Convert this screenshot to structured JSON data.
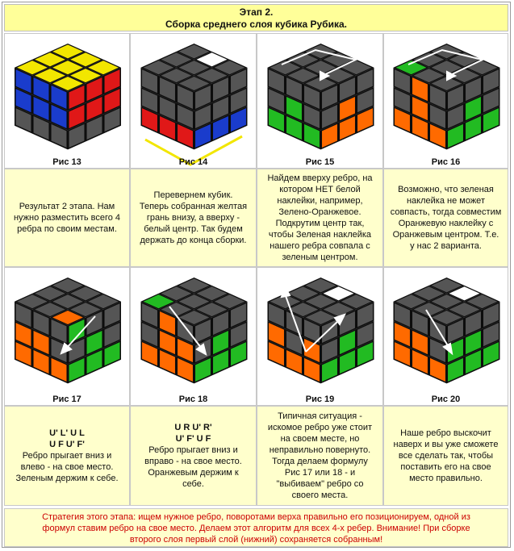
{
  "header": {
    "stage": "Этап 2.",
    "subtitle": "Сборка среднего слоя кубика Рубика."
  },
  "row1": {
    "captions": [
      "Рис 13",
      "Рис 14",
      "Рис 15",
      "Рис 16"
    ],
    "texts": [
      [
        "Результат 2 этапа. Нам",
        "нужно разместить всего 4",
        "ребра по своим местам."
      ],
      [
        "Перевернем кубик.",
        "Теперь собранная желтая",
        "грань внизу, а вверху -",
        "белый центр. Так будем",
        "держать до конца сборки."
      ],
      [
        "Найдем вверху ребро, на",
        "котором НЕТ белой",
        "наклейки, например,",
        "Зелено-Оранжевое.",
        "Подкрутим центр так,",
        "чтобы Зеленая наклейка",
        "нашего ребра совпала с",
        "зеленым центром."
      ],
      [
        "Возможно, что зеленая",
        "наклейка не может",
        "совпасть, тогда совместим",
        "Оранжевую наклейку с",
        "Оранжевым центром. Т.е.",
        "у нас 2 варианта."
      ]
    ]
  },
  "row2": {
    "captions": [
      "Рис 17",
      "Рис 18",
      "Рис 19",
      "Рис 20"
    ],
    "formula_left": [
      "U' L' U L",
      "U F U' F'"
    ],
    "formula_right": [
      "U R U' R'",
      "U' F' U F"
    ],
    "text_left": [
      "Ребро прыгает вниз и",
      "влево - на свое место.",
      "Зеленым держим к себе."
    ],
    "text_right": [
      "Ребро прыгает вниз и",
      "вправо - на свое место.",
      "Оранжевым держим к",
      "себе."
    ],
    "text_3": [
      "Типичная ситуация -",
      "искомое ребро уже стоит",
      "на своем месте, но",
      "неправильно повернуто.",
      "Тогда делаем формулу",
      "Рис 17 или 18 - и",
      "\"выбиваем\" ребро со",
      "своего места."
    ],
    "text_4": [
      "Наше ребро выскочит",
      "наверх и вы уже сможете",
      "все сделать так, чтобы",
      "поставить его на свое",
      "место правильно."
    ]
  },
  "footer": {
    "lines": [
      "Стратегия этого этапа: ищем нужное ребро, поворотами верха правильно его позиционируем, одной из",
      "формул ставим ребро на свое место. Делаем этот алгоритм для всех 4-х ребер. Внимание! При сборке",
      "второго слоя первый слой (нижний) сохраняется собранным!"
    ]
  },
  "colors": {
    "yellow": "#f2e600",
    "red": "#e01818",
    "blue": "#1a3ccc",
    "green": "#22bb22",
    "orange": "#ff6a00",
    "white": "#ffffff",
    "gray": "#555555",
    "black": "#111111"
  },
  "cubes": [
    {
      "top": [
        "yellow",
        "yellow",
        "yellow",
        "yellow",
        "yellow",
        "yellow",
        "yellow",
        "yellow",
        "yellow"
      ],
      "left": [
        "blue",
        "blue",
        "blue",
        "blue",
        "blue",
        "blue",
        "gray",
        "gray",
        "gray"
      ],
      "right": [
        "red",
        "red",
        "red",
        "red",
        "red",
        "red",
        "gray",
        "gray",
        "gray"
      ]
    },
    {
      "top": [
        "gray",
        "white",
        "gray",
        "gray",
        "gray",
        "gray",
        "gray",
        "gray",
        "gray"
      ],
      "left": [
        "gray",
        "gray",
        "gray",
        "gray",
        "gray",
        "gray",
        "red",
        "red",
        "red"
      ],
      "right": [
        "gray",
        "gray",
        "gray",
        "gray",
        "gray",
        "gray",
        "blue",
        "blue",
        "blue"
      ]
    },
    {
      "top": [
        "gray",
        "gray",
        "gray",
        "gray",
        "gray",
        "gray",
        "gray",
        "gray",
        "gray"
      ],
      "left": [
        "gray",
        "gray",
        "gray",
        "gray",
        "green",
        "gray",
        "green",
        "green",
        "green"
      ],
      "right": [
        "gray",
        "gray",
        "gray",
        "gray",
        "orange",
        "gray",
        "orange",
        "orange",
        "orange"
      ]
    },
    {
      "top": [
        "gray",
        "gray",
        "gray",
        "gray",
        "gray",
        "gray",
        "green",
        "gray",
        "gray"
      ],
      "left": [
        "gray",
        "orange",
        "gray",
        "gray",
        "orange",
        "gray",
        "orange",
        "orange",
        "orange"
      ],
      "right": [
        "gray",
        "gray",
        "gray",
        "gray",
        "green",
        "gray",
        "green",
        "green",
        "green"
      ]
    },
    {
      "top": [
        "gray",
        "gray",
        "gray",
        "gray",
        "gray",
        "gray",
        "gray",
        "gray",
        "orange"
      ],
      "left": [
        "gray",
        "gray",
        "gray",
        "orange",
        "orange",
        "gray",
        "orange",
        "orange",
        "orange"
      ],
      "right": [
        "green",
        "gray",
        "gray",
        "gray",
        "green",
        "gray",
        "green",
        "green",
        "green"
      ]
    },
    {
      "top": [
        "gray",
        "gray",
        "gray",
        "gray",
        "gray",
        "gray",
        "green",
        "gray",
        "gray"
      ],
      "left": [
        "gray",
        "orange",
        "gray",
        "gray",
        "orange",
        "orange",
        "orange",
        "orange",
        "orange"
      ],
      "right": [
        "gray",
        "gray",
        "gray",
        "gray",
        "green",
        "gray",
        "green",
        "green",
        "green"
      ]
    },
    {
      "top": [
        "gray",
        "white",
        "gray",
        "gray",
        "gray",
        "gray",
        "gray",
        "gray",
        "gray"
      ],
      "left": [
        "gray",
        "gray",
        "gray",
        "orange",
        "gray",
        "orange",
        "orange",
        "orange",
        "orange"
      ],
      "right": [
        "gray",
        "gray",
        "gray",
        "gray",
        "green",
        "gray",
        "green",
        "green",
        "green"
      ]
    },
    {
      "top": [
        "gray",
        "white",
        "gray",
        "gray",
        "gray",
        "gray",
        "gray",
        "gray",
        "gray"
      ],
      "left": [
        "gray",
        "gray",
        "gray",
        "orange",
        "orange",
        "gray",
        "orange",
        "orange",
        "orange"
      ],
      "right": [
        "gray",
        "gray",
        "gray",
        "green",
        "green",
        "gray",
        "green",
        "green",
        "green"
      ]
    }
  ],
  "icons": [
    "yellow-bracket-icon",
    "rotate-arrow-icon",
    "down-arrow-icon"
  ]
}
